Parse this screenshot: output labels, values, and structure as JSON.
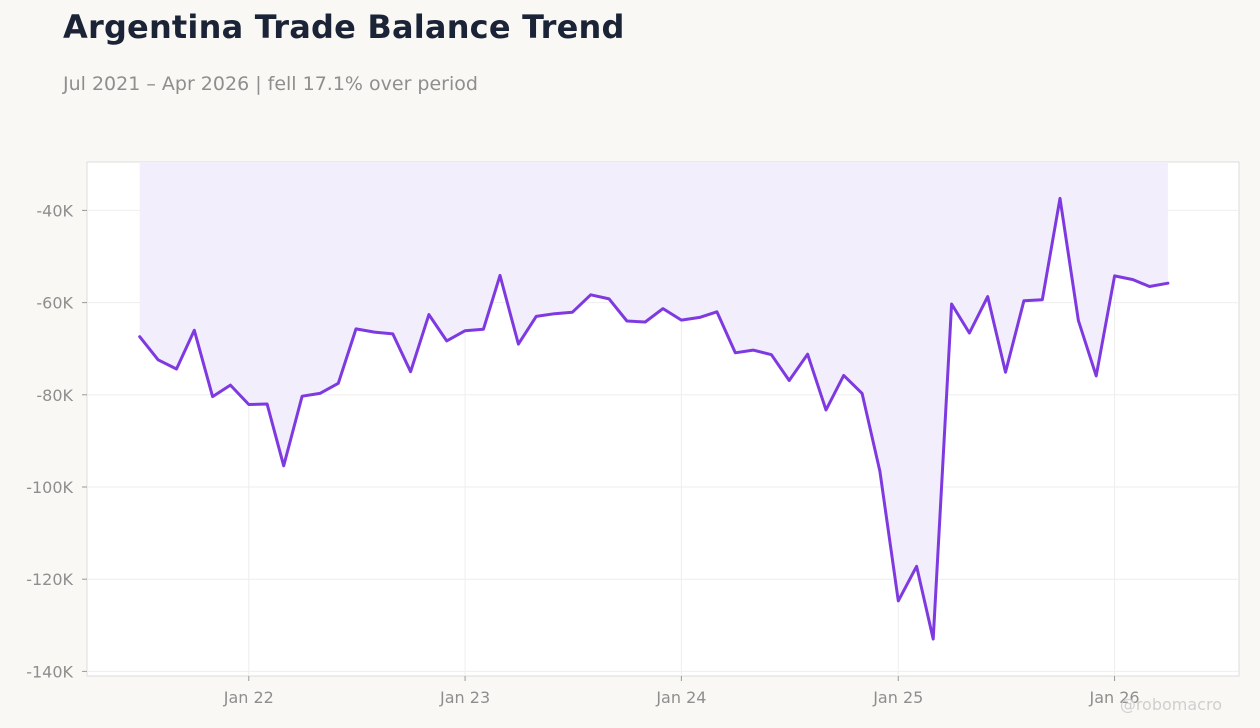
{
  "chart_data": {
    "type": "area",
    "title": "Argentina Trade Balance Trend",
    "subtitle": "Jul 2021 – Apr 2026 | fell 17.1% over period",
    "watermark": "@robomacro",
    "xlabel": "",
    "ylabel": "",
    "ylim": [
      -141000,
      -29500
    ],
    "xlim": [
      "2021-04-03",
      "2026-07-30"
    ],
    "grid": true,
    "legend": "none",
    "colors": {
      "line": "#7e3ae0",
      "fill": "#f2eefc",
      "plot_bg": "#ffffff",
      "page_bg": "#f9f8f5",
      "grid": "#eeeeee"
    },
    "y_ticks": [
      {
        "value": -40000,
        "label": "-40K"
      },
      {
        "value": -60000,
        "label": "-60K"
      },
      {
        "value": -80000,
        "label": "-80K"
      },
      {
        "value": -100000,
        "label": "-100K"
      },
      {
        "value": -120000,
        "label": "-120K"
      },
      {
        "value": -140000,
        "label": "-140K"
      }
    ],
    "x_ticks": [
      {
        "date": "2022-01-01",
        "label": "Jan 22"
      },
      {
        "date": "2023-01-01",
        "label": "Jan 23"
      },
      {
        "date": "2024-01-01",
        "label": "Jan 24"
      },
      {
        "date": "2025-01-01",
        "label": "Jan 25"
      },
      {
        "date": "2026-01-01",
        "label": "Jan 26"
      }
    ],
    "series": [
      {
        "x": [
          "2021-07",
          "2021-08",
          "2021-09",
          "2021-10",
          "2021-11",
          "2021-12",
          "2022-01",
          "2022-02",
          "2022-03",
          "2022-04",
          "2022-05",
          "2022-06",
          "2022-07",
          "2022-08",
          "2022-09",
          "2022-10",
          "2022-11",
          "2022-12",
          "2023-01",
          "2023-02",
          "2023-03",
          "2023-04",
          "2023-05",
          "2023-06",
          "2023-07",
          "2023-08",
          "2023-09",
          "2023-10",
          "2023-11",
          "2023-12",
          "2024-01",
          "2024-02",
          "2024-03",
          "2024-04",
          "2024-05",
          "2024-06",
          "2024-07",
          "2024-08",
          "2024-09",
          "2024-10",
          "2024-11",
          "2024-12",
          "2025-01",
          "2025-02",
          "2025-03",
          "2025-04",
          "2025-05",
          "2025-06",
          "2025-07",
          "2025-08",
          "2025-09",
          "2025-10",
          "2025-11",
          "2025-12",
          "2026-01",
          "2026-02",
          "2026-03",
          "2026-04"
        ],
        "values": [
          -67400,
          -72400,
          -74400,
          -66000,
          -80400,
          -77900,
          -82100,
          -82000,
          -95400,
          -80300,
          -79700,
          -77500,
          -65700,
          -66400,
          -66800,
          -75000,
          -62600,
          -68300,
          -66100,
          -65800,
          -54100,
          -69000,
          -63000,
          -62400,
          -62100,
          -58300,
          -59200,
          -64000,
          -64200,
          -61300,
          -63800,
          -63200,
          -62000,
          -70900,
          -70300,
          -71300,
          -76900,
          -71200,
          -83300,
          -75800,
          -79700,
          -96600,
          -124700,
          -117200,
          -133000,
          -60300,
          -66600,
          -58700,
          -75100,
          -59600,
          -59400,
          -37400,
          -63900,
          -75900,
          -54200,
          -55000,
          -56500,
          -55800
        ]
      }
    ]
  }
}
